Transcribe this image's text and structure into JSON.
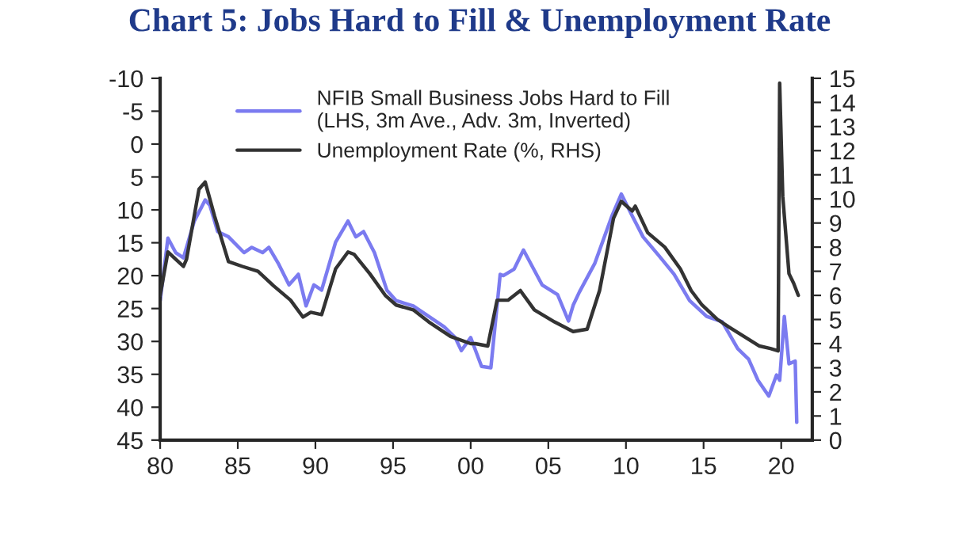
{
  "chart_data": {
    "type": "line",
    "title": "Chart 5: Jobs Hard to Fill & Unemployment Rate",
    "xlim": [
      1980,
      2022
    ],
    "xticks": [
      {
        "value": 1980,
        "label": "80"
      },
      {
        "value": 1985,
        "label": "85"
      },
      {
        "value": 1990,
        "label": "90"
      },
      {
        "value": 1995,
        "label": "95"
      },
      {
        "value": 2000,
        "label": "00"
      },
      {
        "value": 2005,
        "label": "05"
      },
      {
        "value": 2010,
        "label": "10"
      },
      {
        "value": 2015,
        "label": "15"
      },
      {
        "value": 2020,
        "label": "20"
      }
    ],
    "ylim": [
      45,
      -10
    ],
    "yticks": [
      -10,
      -5,
      0,
      5,
      10,
      15,
      20,
      25,
      30,
      35,
      40,
      45
    ],
    "y2lim": [
      0,
      15
    ],
    "y2ticks": [
      0,
      1,
      2,
      3,
      4,
      5,
      6,
      7,
      8,
      9,
      10,
      11,
      12,
      13,
      14,
      15
    ],
    "legend": "top",
    "grid": false,
    "series": [
      {
        "name": "NFIB Small Business Jobs Hard to Fill\n(LHS, 3m Ave., Adv. 3m, Inverted)",
        "color": "#7b7bf0",
        "x": [
          1980.0,
          1980.5,
          1981.0,
          1981.5,
          1982.2,
          1982.9,
          1983.2,
          1983.7,
          1984.4,
          1985.4,
          1985.9,
          1986.6,
          1987.0,
          1987.6,
          1988.3,
          1988.9,
          1989.4,
          1989.9,
          1990.4,
          1991.3,
          1992.1,
          1992.6,
          1993.1,
          1993.8,
          1994.6,
          1995.2,
          1996.3,
          1997.3,
          1998.3,
          1999.0,
          1999.4,
          2000.0,
          2000.7,
          2001.3,
          2001.9,
          2002.1,
          2002.8,
          2003.4,
          2004.6,
          2005.6,
          2006.3,
          2006.6,
          2007.0,
          2008.0,
          2009.1,
          2009.7,
          2010.4,
          2011.1,
          2012.1,
          2013.1,
          2014.1,
          2015.2,
          2016.2,
          2017.2,
          2017.9,
          2018.5,
          2019.2,
          2019.7,
          2019.9,
          2020.0,
          2020.2,
          2020.5,
          2020.9,
          2021.0
        ],
        "values": [
          23.8,
          14.3,
          16.5,
          17.3,
          11.7,
          8.5,
          9.3,
          13.3,
          14.1,
          16.5,
          15.7,
          16.5,
          15.7,
          18.1,
          21.4,
          19.8,
          24.6,
          21.4,
          22.2,
          14.9,
          11.7,
          14.1,
          13.3,
          16.5,
          22.2,
          23.8,
          24.6,
          26.2,
          27.8,
          29.4,
          31.4,
          29.4,
          33.8,
          34.0,
          19.8,
          20.0,
          19.0,
          16.1,
          21.4,
          22.9,
          26.9,
          24.5,
          22.5,
          18.1,
          10.9,
          7.6,
          10.9,
          14.1,
          16.9,
          19.8,
          23.8,
          26.2,
          27.0,
          31.1,
          32.7,
          35.9,
          38.3,
          35.1,
          35.9,
          32.7,
          26.2,
          33.4,
          33.0,
          42.3
        ]
      },
      {
        "name": "Unemployment Rate (%, RHS)",
        "color": "#333333",
        "axis": "y2",
        "x": [
          1980.0,
          1980.5,
          1981.0,
          1981.5,
          1981.7,
          1982.5,
          1982.9,
          1983.5,
          1984.4,
          1985.3,
          1986.3,
          1987.3,
          1988.4,
          1989.2,
          1989.7,
          1990.4,
          1991.3,
          1992.1,
          1992.5,
          1993.5,
          1994.5,
          1995.2,
          1996.3,
          1997.3,
          1998.7,
          2000.0,
          2000.3,
          2001.1,
          2001.7,
          2002.4,
          2003.2,
          2004.1,
          2005.4,
          2006.6,
          2007.5,
          2008.3,
          2009.2,
          2009.7,
          2010.4,
          2010.6,
          2011.4,
          2012.5,
          2013.5,
          2014.2,
          2014.9,
          2015.9,
          2016.6,
          2017.6,
          2018.6,
          2019.3,
          2019.8,
          2019.9,
          2020.1,
          2020.5,
          2020.8,
          2021.1
        ],
        "values": [
          6.0,
          7.8,
          7.5,
          7.2,
          7.5,
          10.4,
          10.7,
          9.3,
          7.4,
          7.2,
          7.0,
          6.4,
          5.8,
          5.1,
          5.3,
          5.2,
          7.1,
          7.8,
          7.7,
          6.9,
          6.0,
          5.6,
          5.4,
          4.9,
          4.3,
          4.0,
          4.0,
          3.9,
          5.8,
          5.8,
          6.2,
          5.4,
          4.9,
          4.5,
          4.6,
          6.2,
          9.2,
          9.9,
          9.5,
          9.7,
          8.6,
          8.0,
          7.1,
          6.2,
          5.6,
          5.0,
          4.7,
          4.3,
          3.9,
          3.8,
          3.7,
          14.8,
          10.1,
          6.9,
          6.5,
          6.0
        ]
      }
    ]
  }
}
